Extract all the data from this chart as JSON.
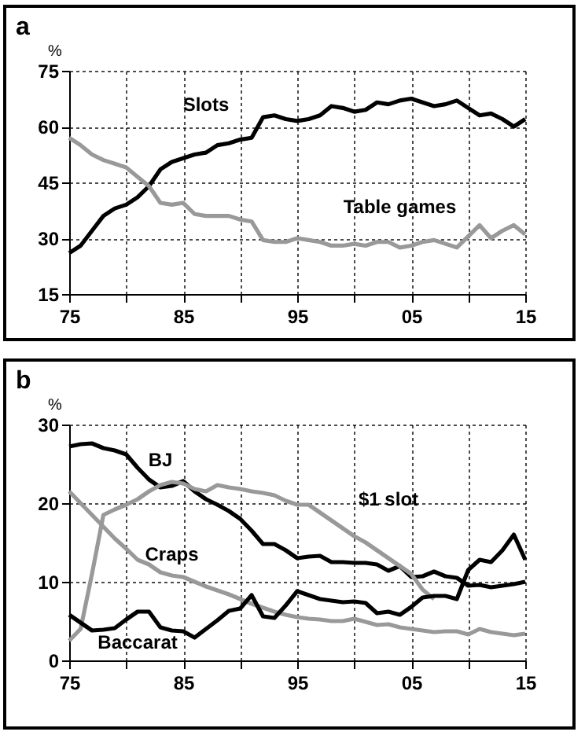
{
  "chart_data": [
    {
      "type": "line",
      "title": "a",
      "ylabel": "%",
      "x": [
        1975,
        1976,
        1977,
        1978,
        1979,
        1980,
        1981,
        1982,
        1983,
        1984,
        1985,
        1986,
        1987,
        1988,
        1989,
        1990,
        1991,
        1992,
        1993,
        1994,
        1995,
        1996,
        1997,
        1998,
        1999,
        2000,
        2001,
        2002,
        2003,
        2004,
        2005,
        2006,
        2007,
        2008,
        2009,
        2010,
        2011,
        2012,
        2013,
        2014,
        2015
      ],
      "series": [
        {
          "name": "Slots",
          "color": "#000000",
          "values": [
            26,
            28,
            32,
            36,
            38,
            39,
            41,
            44,
            48.5,
            50.5,
            51.5,
            52.5,
            53,
            55,
            55.5,
            56.5,
            57,
            62.5,
            63,
            62,
            61.5,
            62,
            63,
            65.5,
            65,
            64,
            64.5,
            66.5,
            66,
            67,
            67.5,
            66.5,
            65.5,
            66,
            67,
            65,
            63,
            63.5,
            62,
            60,
            62
          ]
        },
        {
          "name": "Table games",
          "color": "#999999",
          "values": [
            57,
            55,
            52.5,
            51,
            50,
            49,
            46.5,
            44,
            39.5,
            39,
            39.5,
            36.5,
            36,
            36,
            36,
            35,
            34.5,
            29.5,
            29,
            29,
            30,
            29.5,
            29,
            28,
            28,
            28.5,
            28,
            29,
            29,
            27.5,
            28,
            29,
            29.5,
            28.5,
            27.5,
            30.5,
            33.5,
            30,
            32,
            33.5,
            31
          ]
        }
      ],
      "xlim": [
        1975,
        2015
      ],
      "xticks": [
        {
          "value": 1975,
          "label": "75"
        },
        {
          "value": 1980,
          "label": null
        },
        {
          "value": 1985,
          "label": "85"
        },
        {
          "value": 1990,
          "label": null
        },
        {
          "value": 1995,
          "label": "95"
        },
        {
          "value": 2000,
          "label": null
        },
        {
          "value": 2005,
          "label": "05"
        },
        {
          "value": 2010,
          "label": null
        },
        {
          "value": 2015,
          "label": "15"
        }
      ],
      "ylim": [
        15,
        75
      ],
      "yticks": [
        15,
        30,
        45,
        60,
        75
      ],
      "grid": true
    },
    {
      "type": "line",
      "title": "b",
      "ylabel": "%",
      "x": [
        1975,
        1976,
        1977,
        1978,
        1979,
        1980,
        1981,
        1982,
        1983,
        1984,
        1985,
        1986,
        1987,
        1988,
        1989,
        1990,
        1991,
        1992,
        1993,
        1994,
        1995,
        1996,
        1997,
        1998,
        1999,
        2000,
        2001,
        2002,
        2003,
        2004,
        2005,
        2006,
        2007,
        2008,
        2009,
        2010,
        2011,
        2012,
        2013,
        2014,
        2015
      ],
      "series": [
        {
          "name": "BJ",
          "color": "#000000",
          "values": [
            27.2,
            27.5,
            27.6,
            27,
            26.7,
            26.2,
            24.5,
            23,
            22,
            22.2,
            22.8,
            21.5,
            20.5,
            19.8,
            19,
            18,
            16.5,
            14.8,
            14.8,
            14,
            13,
            13.2,
            13.3,
            12.5,
            12.5,
            12.4,
            12.4,
            12.2,
            11.4,
            12,
            10.6,
            10.7,
            11.3,
            10.7,
            10.5,
            9.5,
            9.6,
            9.3,
            9.5,
            9.7,
            10
          ]
        },
        {
          "name": "$1 slot",
          "color": "#999999",
          "values": [
            2.5,
            4,
            11,
            18.5,
            19.2,
            19.8,
            20.5,
            21.5,
            22.3,
            22.7,
            22.5,
            21.8,
            21.5,
            22.3,
            22,
            21.8,
            21.5,
            21.3,
            21,
            20.3,
            19.8,
            19.8,
            18.8,
            17.8,
            16.8,
            15.8,
            15,
            14,
            13,
            12,
            11,
            9,
            7.8,
            null,
            null,
            null,
            null,
            null,
            null,
            null,
            null
          ]
        },
        {
          "name": "Craps",
          "color": "#999999",
          "values": [
            21.5,
            20,
            18.5,
            17,
            15.5,
            14.2,
            12.8,
            12.2,
            11.2,
            10.8,
            10.6,
            10,
            9.4,
            8.9,
            8.4,
            7.8,
            7.2,
            6.7,
            6.2,
            5.8,
            5.5,
            5.3,
            5.2,
            5,
            5,
            5.3,
            4.9,
            4.5,
            4.6,
            4.2,
            4,
            3.8,
            3.6,
            3.7,
            3.7,
            3.3,
            4,
            3.6,
            3.4,
            3.2,
            3.4
          ]
        },
        {
          "name": "Baccarat",
          "color": "#000000",
          "values": [
            5.8,
            4.8,
            3.8,
            3.9,
            4.1,
            5.2,
            6.2,
            6.2,
            4.2,
            3.8,
            3.7,
            2.9,
            4,
            5.1,
            6.3,
            6.6,
            8.3,
            5.6,
            5.4,
            7,
            8.8,
            8.3,
            7.8,
            7.6,
            7.4,
            7.5,
            7.3,
            6,
            6.2,
            5.8,
            6.8,
            8,
            8.2,
            8.2,
            7.8,
            11.5,
            12.8,
            12.5,
            14,
            16,
            12.8
          ]
        }
      ],
      "xlim": [
        1975,
        2015
      ],
      "xticks": [
        {
          "value": 1975,
          "label": "75"
        },
        {
          "value": 1980,
          "label": null
        },
        {
          "value": 1985,
          "label": "85"
        },
        {
          "value": 1990,
          "label": null
        },
        {
          "value": 1995,
          "label": "95"
        },
        {
          "value": 2000,
          "label": null
        },
        {
          "value": 2005,
          "label": "05"
        },
        {
          "value": 2010,
          "label": null
        },
        {
          "value": 2015,
          "label": "15"
        }
      ],
      "ylim": [
        0,
        30
      ],
      "yticks": [
        0,
        10,
        20,
        30
      ],
      "grid": true
    }
  ]
}
